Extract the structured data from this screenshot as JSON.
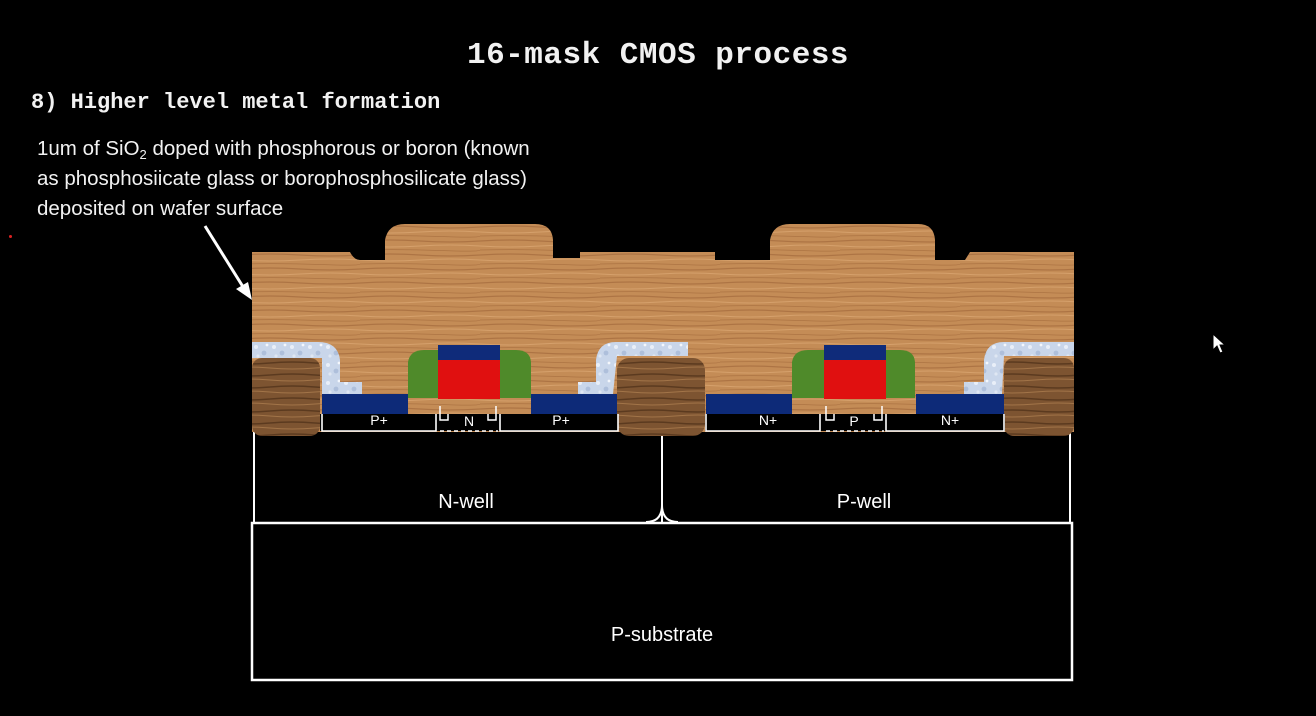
{
  "title": "16-mask CMOS process",
  "step": "8) Higher level metal formation",
  "description": {
    "line1_pre": "1um of SiO",
    "line1_sub": "2",
    "line1_post": " doped with phosphorous or boron (known",
    "line2": "as phosphosiicate glass or borophosphosilicate glass)",
    "line3": "deposited on wafer surface"
  },
  "labels": {
    "p_plus_left": "P+",
    "n_channel": "N",
    "p_plus_right": "P+",
    "n_plus_left": "N+",
    "p_channel": "P",
    "n_plus_right": "N+",
    "n_well": "N-well",
    "p_well": "P-well",
    "p_substrate": "P-substrate"
  },
  "colors": {
    "background": "#000000",
    "text": "#f2f2f2",
    "glass_layer": "#c8915a",
    "field_oxide": "#7a5230",
    "diffusion": "#0d2a78",
    "gate_poly": "#e01010",
    "spacer": "#4f8a2a",
    "gate_cap": "#0f2b7a",
    "metal_frost": "#c9d6ea",
    "outline": "#ffffff"
  }
}
